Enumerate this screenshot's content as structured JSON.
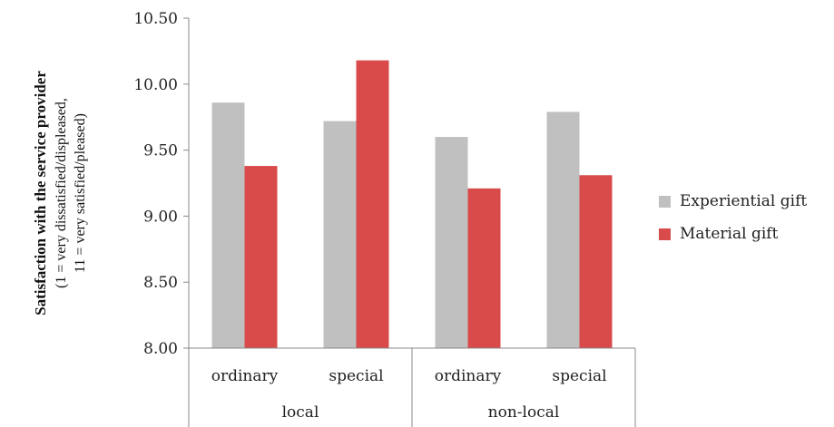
{
  "chart_data": {
    "type": "bar",
    "ylabel_main": "Satisfaction with the service provider",
    "ylabel_sub_1": "(1 = very dissatisfied/displeased,",
    "ylabel_sub_2": "11 = very satisfied/pleased)",
    "ylim": [
      8.0,
      10.5
    ],
    "yticks": [
      "8.00",
      "8.50",
      "9.00",
      "9.50",
      "10.00",
      "10.50"
    ],
    "groups": [
      {
        "label": "local",
        "categories": [
          "ordinary",
          "special"
        ]
      },
      {
        "label": "non-local",
        "categories": [
          "ordinary",
          "special"
        ]
      }
    ],
    "series": [
      {
        "name": "Experiential gift",
        "color": "#c0c0c0",
        "values": [
          9.86,
          9.72,
          9.6,
          9.79
        ]
      },
      {
        "name": "Material gift",
        "color": "#d94a4a",
        "values": [
          9.38,
          10.18,
          9.21,
          9.31
        ]
      }
    ],
    "legend_position": "right",
    "grid": false
  }
}
